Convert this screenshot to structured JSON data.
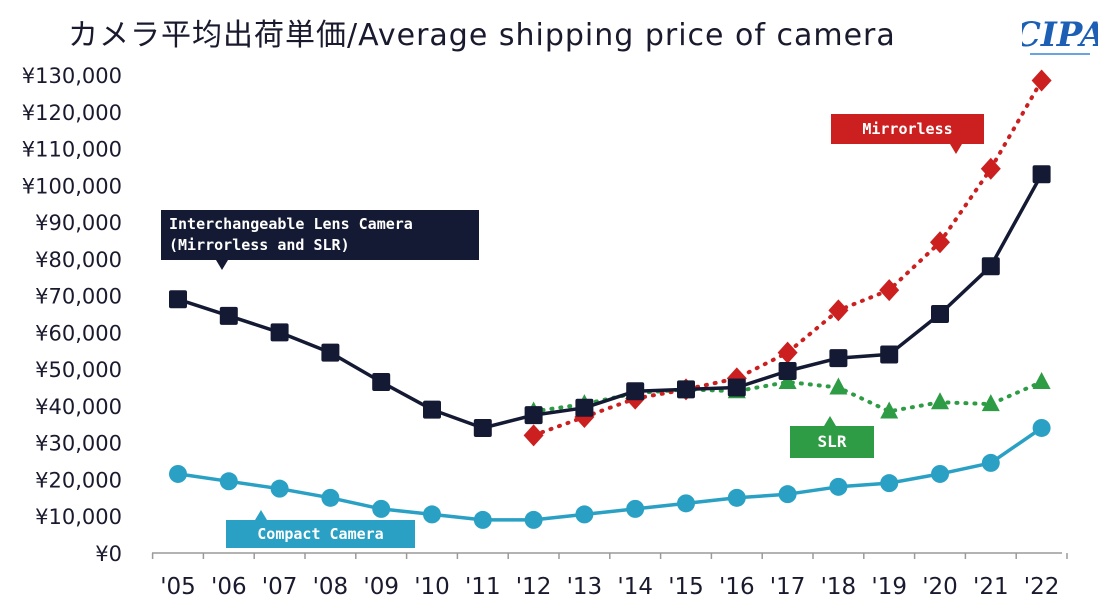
{
  "title": "カメラ平均出荷単価/Average shipping price of camera",
  "logo_text": "CIPA",
  "colors": {
    "ilc": "#141a33",
    "mirrorless": "#cc1f1f",
    "slr": "#2e9b45",
    "compact": "#2aa1c4",
    "axis": "#9a9a9a",
    "text": "#1a1a2e"
  },
  "chart_data": {
    "type": "line",
    "title": "カメラ平均出荷単価/Average shipping price of camera",
    "xlabel": "",
    "ylabel": "",
    "ylim": [
      0,
      130000
    ],
    "y_ticks": [
      0,
      10000,
      20000,
      30000,
      40000,
      50000,
      60000,
      70000,
      80000,
      90000,
      100000,
      110000,
      120000,
      130000
    ],
    "y_tick_labels": [
      "¥0",
      "¥10,000",
      "¥20,000",
      "¥30,000",
      "¥40,000",
      "¥50,000",
      "¥60,000",
      "¥70,000",
      "¥80,000",
      "¥90,000",
      "¥100,000",
      "¥110,000",
      "¥120,000",
      "¥130,000"
    ],
    "categories": [
      "'05",
      "'06",
      "'07",
      "'08",
      "'09",
      "'10",
      "'11",
      "'12",
      "'13",
      "'14",
      "'15",
      "'16",
      "'17",
      "'18",
      "'19",
      "'20",
      "'21",
      "'22"
    ],
    "series": [
      {
        "key": "ilc",
        "name": "Interchangeable Lens Camera (Mirrorless and SLR)",
        "label_lines": [
          "Interchangeable Lens Camera",
          "(Mirrorless and SLR)"
        ],
        "marker": "square",
        "line": "solid",
        "values": [
          69000,
          64500,
          60000,
          54500,
          46500,
          39000,
          34000,
          37500,
          39500,
          44000,
          44500,
          45000,
          49500,
          53000,
          54000,
          65000,
          78000,
          103000
        ]
      },
      {
        "key": "mirrorless",
        "name": "Mirrorless",
        "marker": "diamond",
        "line": "dotted",
        "values": [
          null,
          null,
          null,
          null,
          null,
          null,
          null,
          32000,
          37000,
          42000,
          44500,
          47500,
          54500,
          66000,
          71500,
          84500,
          104500,
          128500
        ]
      },
      {
        "key": "slr",
        "name": "SLR",
        "marker": "triangle",
        "line": "dotted",
        "values": [
          null,
          null,
          null,
          null,
          null,
          null,
          null,
          38500,
          40500,
          43500,
          44500,
          44000,
          46500,
          45000,
          38500,
          41000,
          40500,
          46500
        ]
      },
      {
        "key": "compact",
        "name": "Compact Camera",
        "marker": "circle",
        "line": "solid",
        "values": [
          21500,
          19500,
          17500,
          15000,
          12000,
          10500,
          9000,
          9000,
          10500,
          12000,
          13500,
          15000,
          16000,
          18000,
          19000,
          21500,
          24500,
          34000
        ]
      }
    ]
  }
}
